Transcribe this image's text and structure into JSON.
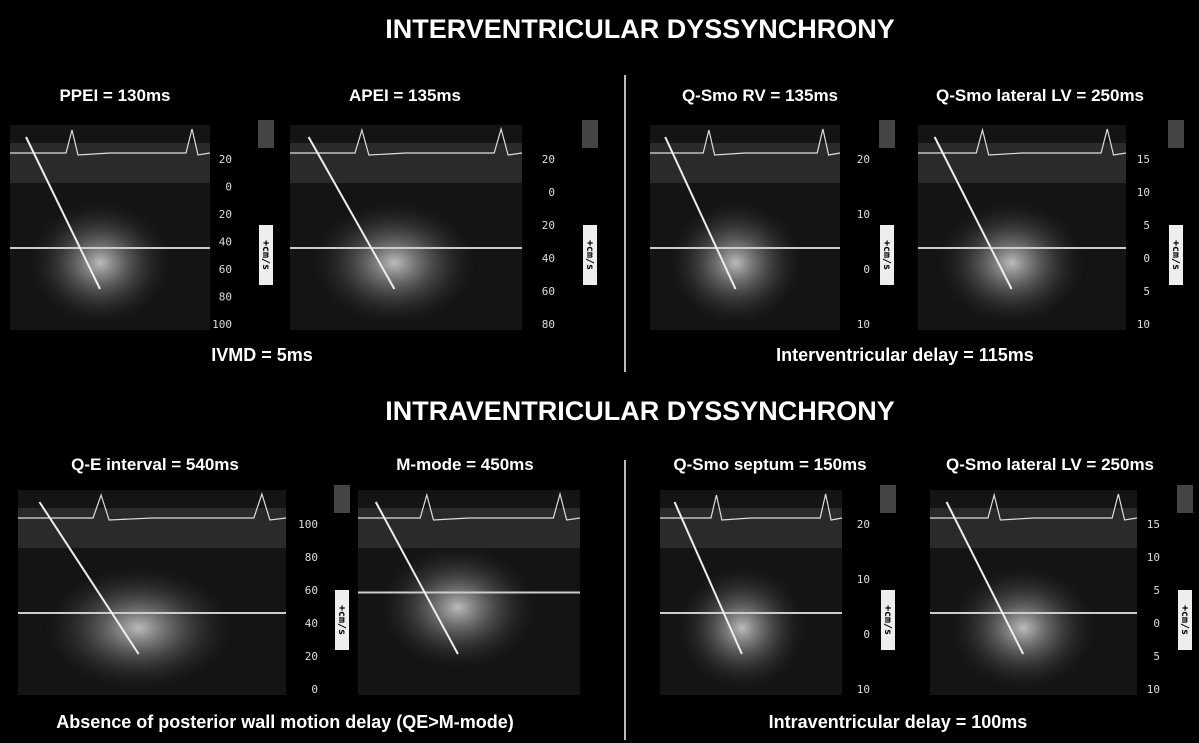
{
  "sections": [
    {
      "title": "INTERVENTRICULAR  DYSSYNCHRONY",
      "panels": [
        {
          "label": "PPEI = 130ms",
          "scale": [
            "20",
            "0",
            "20",
            "40",
            "60",
            "80",
            "100"
          ],
          "unit": "+cm/s"
        },
        {
          "label": "APEI = 135ms",
          "scale": [
            "20",
            "0",
            "20",
            "40",
            "60",
            "80"
          ],
          "unit": "+cm/s"
        },
        {
          "label": "Q-Smo RV = 135ms",
          "scale": [
            "20",
            "10",
            "0",
            "10"
          ],
          "unit": "+cm/s"
        },
        {
          "label": "Q-Smo lateral LV = 250ms",
          "scale": [
            "15",
            "10",
            "5",
            "0",
            "5",
            "10"
          ],
          "unit": "+cm/s"
        }
      ],
      "summaries": [
        "IVMD = 5ms",
        "Interventricular delay = 115ms"
      ]
    },
    {
      "title": "INTRAVENTRICULAR  DYSSYNCHRONY",
      "panels": [
        {
          "label": "Q-E interval = 540ms",
          "scale": [
            "100",
            "80",
            "60",
            "40",
            "20",
            "0"
          ],
          "unit": "+cm/s"
        },
        {
          "label": "M-mode = 450ms",
          "scale": [],
          "unit": ""
        },
        {
          "label": "Q-Smo septum = 150ms",
          "scale": [
            "20",
            "10",
            "0",
            "10"
          ],
          "unit": "+cm/s"
        },
        {
          "label": "Q-Smo lateral LV = 250ms",
          "scale": [
            "15",
            "10",
            "5",
            "0",
            "5",
            "10"
          ],
          "unit": "+cm/s"
        }
      ],
      "summaries": [
        "Absence of posterior wall motion delay (QE>M-mode)",
        "Intraventricular delay = 100ms"
      ]
    }
  ]
}
